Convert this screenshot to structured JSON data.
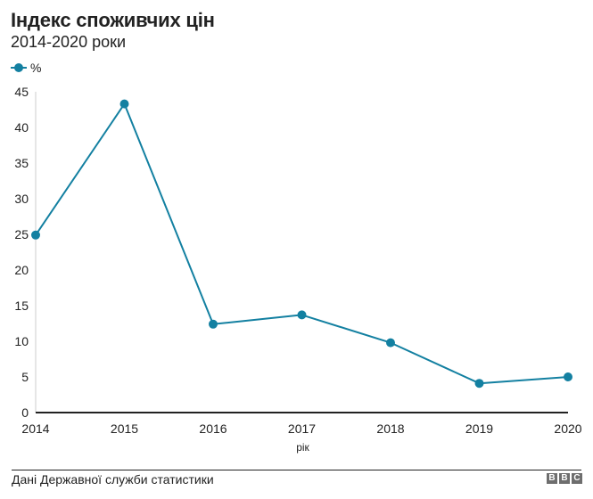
{
  "header": {
    "title": "Індекс споживчих цін",
    "subtitle": "2014-2020 роки"
  },
  "legend": {
    "items": [
      {
        "label": "%",
        "color": "#1380A1",
        "icon": "line-dot-icon"
      }
    ]
  },
  "footer": {
    "source": "Дані Державної служби статистики",
    "logo": [
      "B",
      "B",
      "C"
    ]
  },
  "colors": {
    "series": "#1380A1",
    "axis_zero": "#222222",
    "y_axis_line": "#cccccc",
    "logo_block": "#6e6e6e"
  },
  "chart_data": {
    "type": "line",
    "title": "Індекс споживчих цін",
    "subtitle": "2014-2020 роки",
    "xlabel": "рік",
    "ylabel": "",
    "x": [
      "2014",
      "2015",
      "2016",
      "2017",
      "2018",
      "2019",
      "2020"
    ],
    "series": [
      {
        "name": "%",
        "values": [
          24.9,
          43.3,
          12.4,
          13.7,
          9.8,
          4.1,
          5.0
        ]
      }
    ],
    "yticks": [
      0,
      5,
      10,
      15,
      20,
      25,
      30,
      35,
      40,
      45
    ],
    "ylim": [
      0,
      45
    ],
    "grid": false,
    "legend_position": "top-left",
    "source": "Дані Державної служби статистики"
  }
}
